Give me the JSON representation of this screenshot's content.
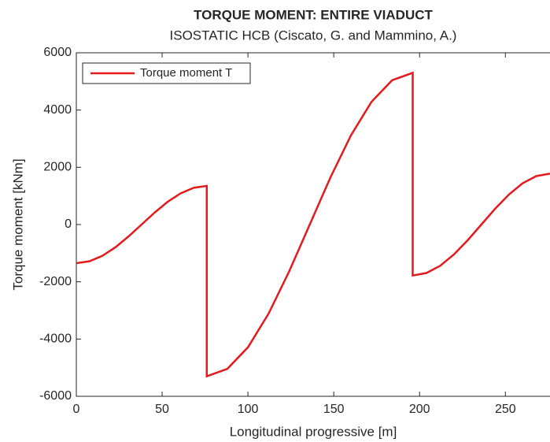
{
  "chart_data": {
    "type": "line",
    "title": "TORQUE MOMENT: ENTIRE VIADUCT",
    "subtitle": "ISOSTATIC HCB (Ciscato, G. and Mammino, A.)",
    "xlabel": "Longitudinal progressive [m]",
    "ylabel": "Torque moment [kNm]",
    "x": [
      0,
      7.6,
      15.2,
      22.8,
      30.4,
      38,
      45.6,
      53.2,
      60.8,
      68.4,
      76,
      76,
      88,
      100,
      112,
      124,
      136,
      148,
      160,
      172,
      184,
      196,
      196,
      204,
      212,
      220,
      228,
      236,
      244,
      252,
      260,
      268,
      276
    ],
    "series": [
      {
        "name": "Torque moment T",
        "color": "#e41a1c",
        "values": [
          -1350,
          -1284,
          -1092,
          -794,
          -417,
          0,
          417,
          794,
          1092,
          1284,
          1350,
          -5300,
          -5041,
          -4288,
          -3115,
          -1638,
          0,
          1638,
          3115,
          4288,
          5041,
          5300,
          -1780,
          -1693,
          -1440,
          -1046,
          -550,
          0,
          550,
          1046,
          1440,
          1693,
          1780
        ]
      }
    ],
    "xlim": [
      0,
      276
    ],
    "xticks": [
      0,
      50,
      100,
      150,
      200,
      250
    ],
    "ylim": [
      -6000,
      6000
    ],
    "yticks": [
      -6000,
      -4000,
      -2000,
      0,
      2000,
      4000,
      6000
    ],
    "legend": "upper left"
  }
}
